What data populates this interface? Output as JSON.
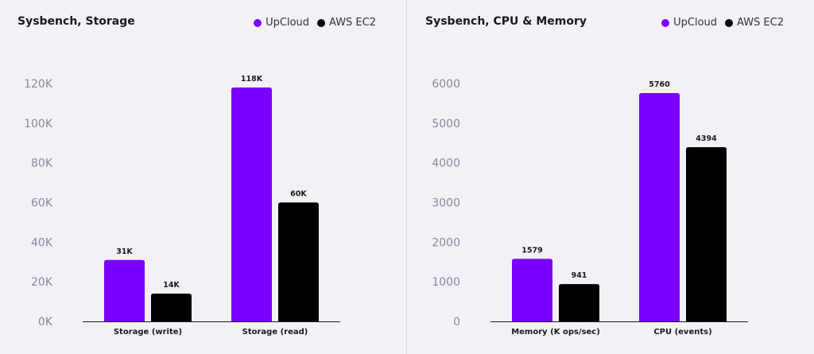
{
  "chart_data": [
    {
      "type": "bar",
      "title": "Sysbench, Storage",
      "categories": [
        "Storage (write)",
        "Storage (read)"
      ],
      "series": [
        {
          "name": "UpCloud",
          "values": [
            31000,
            118000
          ],
          "labels": [
            "31K",
            "118K"
          ],
          "color": "#7a00ff"
        },
        {
          "name": "AWS EC2",
          "values": [
            14000,
            60000
          ],
          "labels": [
            "14K",
            "60K"
          ],
          "color": "#000000"
        }
      ],
      "ylim": [
        0,
        120000
      ],
      "yticks": [
        0,
        20000,
        40000,
        60000,
        80000,
        100000,
        120000
      ],
      "ytick_labels": [
        "0K",
        "20K",
        "40K",
        "60K",
        "80K",
        "100K",
        "120K"
      ],
      "legend": "top-right",
      "grid": false
    },
    {
      "type": "bar",
      "title": "Sysbench, CPU & Memory",
      "categories": [
        "Memory (K ops/sec)",
        "CPU (events)"
      ],
      "series": [
        {
          "name": "UpCloud",
          "values": [
            1579,
            5760
          ],
          "labels": [
            "1579",
            "5760"
          ],
          "color": "#7a00ff"
        },
        {
          "name": "AWS EC2",
          "values": [
            941,
            4394
          ],
          "labels": [
            "941",
            "4394"
          ],
          "color": "#000000"
        }
      ],
      "ylim": [
        0,
        6000
      ],
      "yticks": [
        0,
        1000,
        2000,
        3000,
        4000,
        5000,
        6000
      ],
      "ytick_labels": [
        "0",
        "1000",
        "2000",
        "3000",
        "4000",
        "5000",
        "6000"
      ],
      "legend": "top-right",
      "grid": false
    }
  ]
}
